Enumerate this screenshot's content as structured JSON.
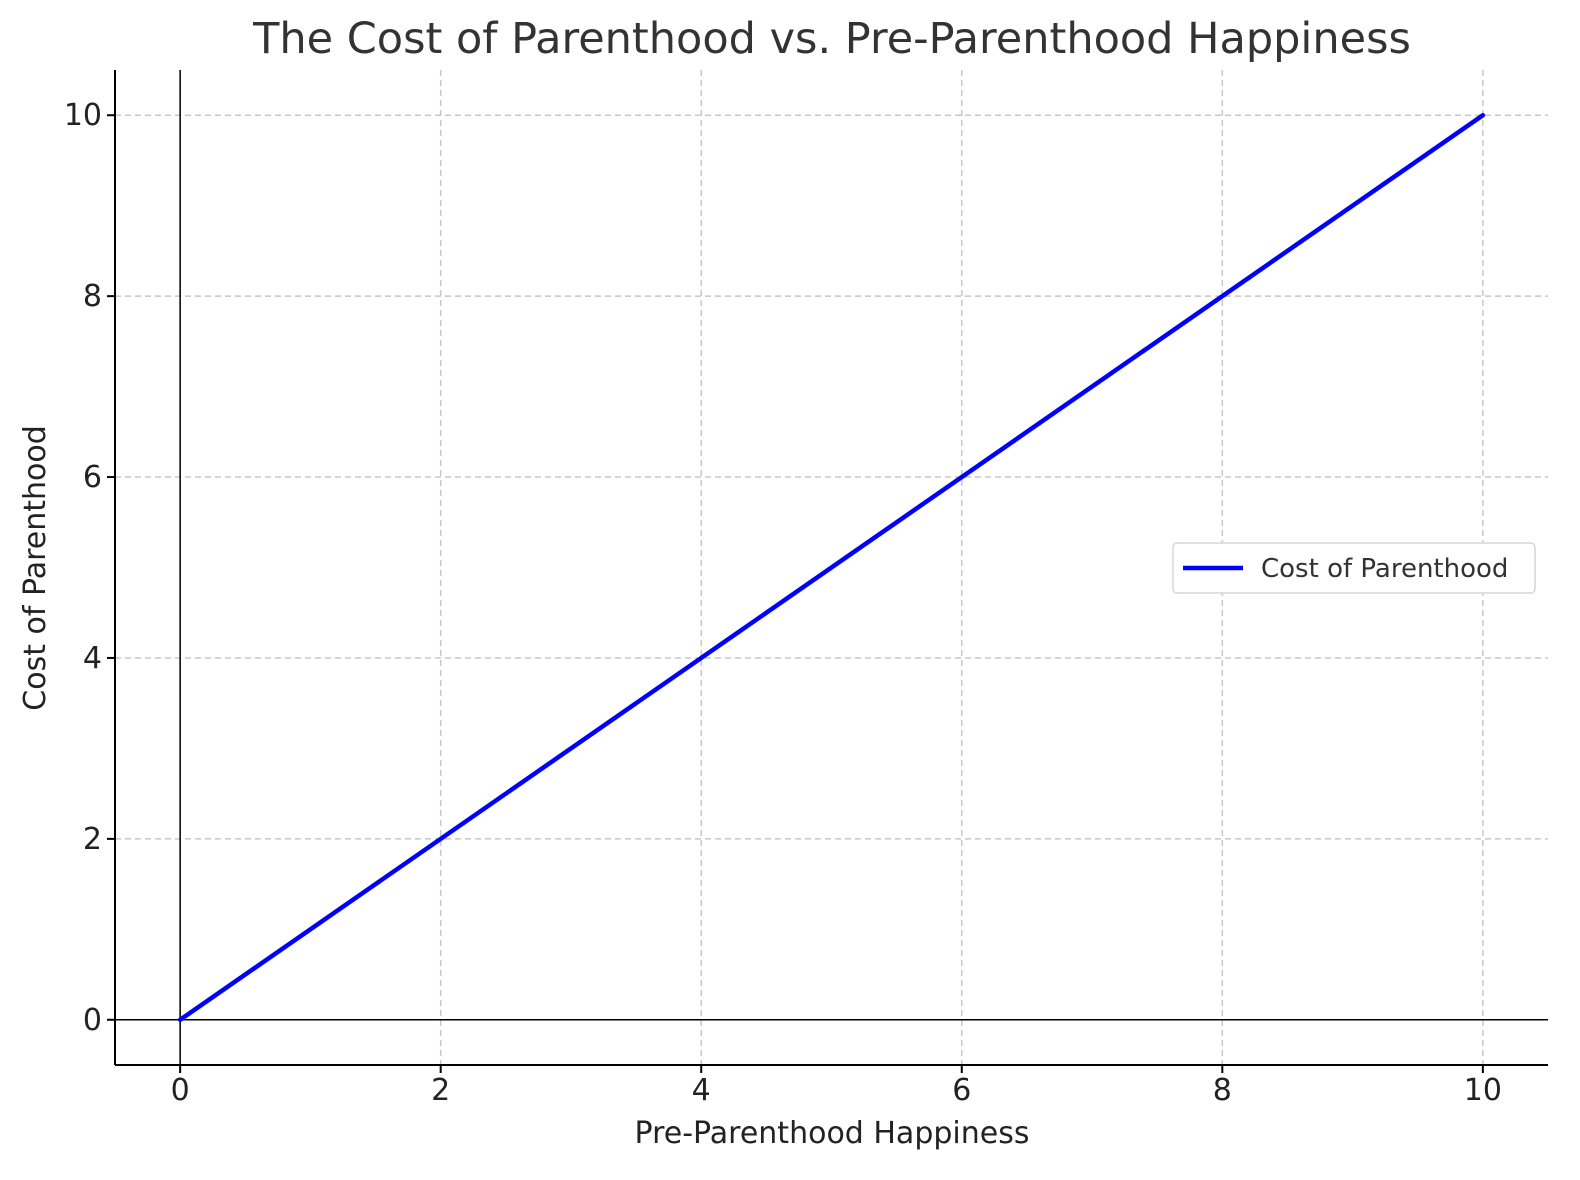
{
  "chart_data": {
    "type": "line",
    "title": "The Cost of Parenthood vs. Pre-Parenthood Happiness",
    "xlabel": "Pre-Parenthood Happiness",
    "ylabel": "Cost of Parenthood",
    "xlim": [
      -0.5,
      10.5
    ],
    "ylim": [
      -0.5,
      10.5
    ],
    "xticks": [
      0,
      2,
      4,
      6,
      8,
      10
    ],
    "yticks": [
      0,
      2,
      4,
      6,
      8,
      10
    ],
    "grid": true,
    "legend_position": "center-right",
    "series": [
      {
        "name": "Cost of Parenthood",
        "color": "#0000ff",
        "x": [
          0,
          10
        ],
        "y": [
          0,
          10
        ]
      }
    ]
  }
}
